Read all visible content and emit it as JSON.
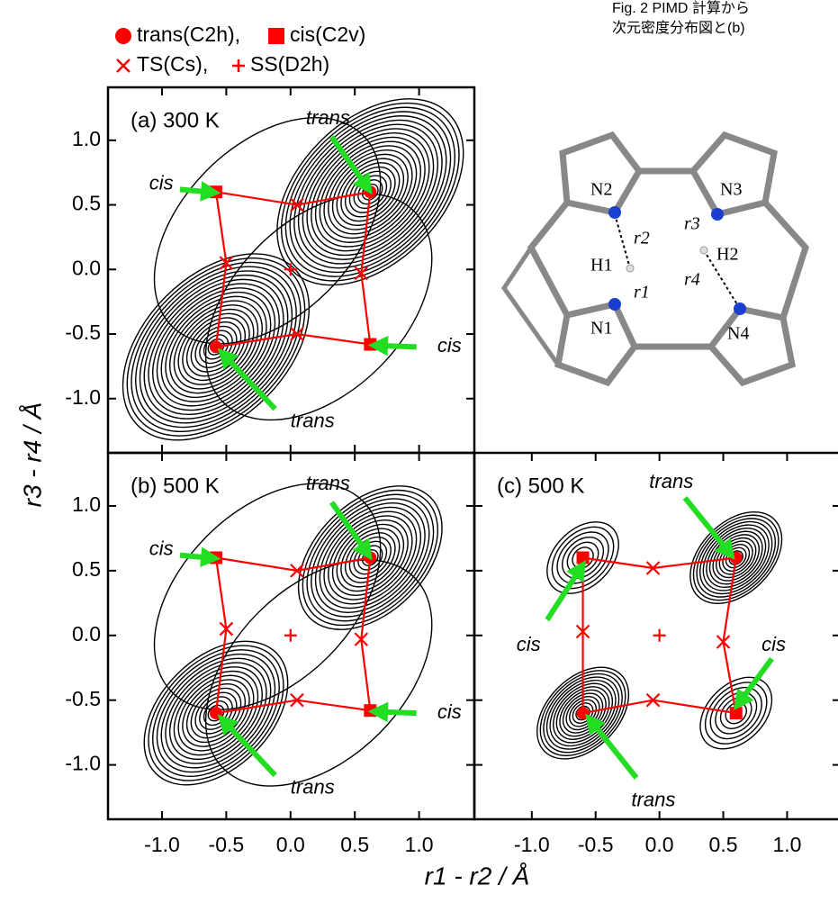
{
  "caption": [
    "Fig. 2 PIMD 計算から",
    "次元密度分布図と(b) "
  ],
  "legend": [
    "trans(C2h),",
    "cis(C2v)",
    "TS(Cs),",
    "SS(D2h)"
  ],
  "x_label": "r1 - r2 / Å",
  "y_label": "r3 - r4 / Å",
  "molecule": {
    "atoms": [
      "N2",
      "N3",
      "H1",
      "H2",
      "N1",
      "N4"
    ],
    "distances": [
      "r2",
      "r3",
      "r1",
      "r4"
    ]
  },
  "annotations": {
    "trans": "trans",
    "cis": "cis"
  },
  "chart_data": [
    {
      "type": "contour",
      "panel_label": "(a) 300 K",
      "xlim": [
        -1.42,
        1.43
      ],
      "ylim": [
        -1.42,
        1.41
      ],
      "xticks": [
        -1,
        -0.5,
        0,
        0.5,
        1
      ],
      "yticks": [
        {
          "value": -1.0,
          "label": "-1.0"
        },
        -0.5,
        {
          "value": 0.0,
          "label": "0.0"
        },
        0.5,
        {
          "value": 1.0,
          "label": "1.0"
        }
      ],
      "series": [
        {
          "marker": "circle",
          "color": "#ff0000",
          "x": [
            0.62,
            -0.58
          ],
          "values": [
            0.6,
            -0.6
          ]
        },
        {
          "marker": "square",
          "color": "#ff0000",
          "x": [
            -0.58,
            0.62
          ],
          "values": [
            0.6,
            -0.58
          ]
        },
        {
          "marker": "cross",
          "color": "#ff0000",
          "x": [
            0.05,
            0.55,
            -0.5,
            0.05
          ],
          "values": [
            0.5,
            -0.03,
            0.05,
            -0.5
          ]
        },
        {
          "marker": "plus",
          "color": "#ff0000",
          "x": [
            0
          ],
          "values": [
            0
          ]
        }
      ]
    },
    {
      "type": "contour",
      "panel_label": "(b) 500 K",
      "xlim": [
        -1.42,
        1.43
      ],
      "ylim": [
        -1.42,
        1.41
      ],
      "xticks": [
        {
          "value": -1.0,
          "label": "-1.0"
        },
        -0.5,
        {
          "value": 0.0,
          "label": "0.0"
        },
        0.5,
        {
          "value": 1.0,
          "label": "1.0"
        }
      ],
      "yticks": [
        {
          "value": -1.0,
          "label": "-1.0"
        },
        -0.5,
        {
          "value": 0.0,
          "label": "0.0"
        },
        0.5,
        {
          "value": 1.0,
          "label": "1.0"
        }
      ],
      "series": [
        {
          "marker": "circle",
          "color": "#ff0000",
          "x": [
            0.62,
            -0.58
          ],
          "values": [
            0.6,
            -0.6
          ]
        },
        {
          "marker": "square",
          "color": "#ff0000",
          "x": [
            -0.58,
            0.62
          ],
          "values": [
            0.6,
            -0.58
          ]
        },
        {
          "marker": "cross",
          "color": "#ff0000",
          "x": [
            0.05,
            0.55,
            -0.5,
            0.05
          ],
          "values": [
            0.5,
            -0.03,
            0.05,
            -0.5
          ]
        },
        {
          "marker": "plus",
          "color": "#ff0000",
          "x": [
            0
          ],
          "values": [
            0
          ]
        }
      ]
    },
    {
      "type": "contour",
      "panel_label": "(c) 500 K",
      "xlim": [
        -1.45,
        1.42
      ],
      "ylim": [
        -1.42,
        1.41
      ],
      "xticks": [
        {
          "value": -1.0,
          "label": "-1.0"
        },
        -0.5,
        {
          "value": 0.0,
          "label": "0.0"
        },
        0.5,
        {
          "value": 1.0,
          "label": "1.0"
        }
      ],
      "yticks": [
        -1,
        -0.5,
        0,
        0.5,
        1
      ],
      "series": [
        {
          "marker": "circle",
          "color": "#ff0000",
          "x": [
            0.6,
            -0.6
          ],
          "values": [
            0.6,
            -0.6
          ]
        },
        {
          "marker": "square",
          "color": "#ff0000",
          "x": [
            -0.6,
            0.6
          ],
          "values": [
            0.6,
            -0.6
          ]
        },
        {
          "marker": "cross",
          "color": "#ff0000",
          "x": [
            -0.05,
            0.5,
            -0.6,
            -0.05
          ],
          "values": [
            0.52,
            -0.05,
            0.03,
            -0.5
          ]
        },
        {
          "marker": "plus",
          "color": "#ff0000",
          "x": [
            0
          ],
          "values": [
            0
          ]
        }
      ]
    }
  ]
}
